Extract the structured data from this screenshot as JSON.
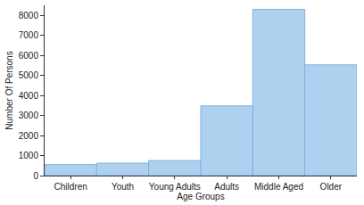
{
  "chart_data": {
    "type": "bar",
    "x_label": "Age Groups",
    "y_label": "Number Of Persons",
    "categories": [
      "Children",
      "Youth",
      "Young Adults",
      "Adults",
      "Middle Aged",
      "Older"
    ],
    "values": [
      550,
      620,
      750,
      3480,
      8300,
      5530
    ],
    "color": "#afd1f0",
    "ylim": [
      0,
      8500
    ],
    "yticks": [
      0,
      1000,
      2000,
      3000,
      4000,
      5000,
      6000,
      7000,
      8000
    ],
    "grid": false
  }
}
